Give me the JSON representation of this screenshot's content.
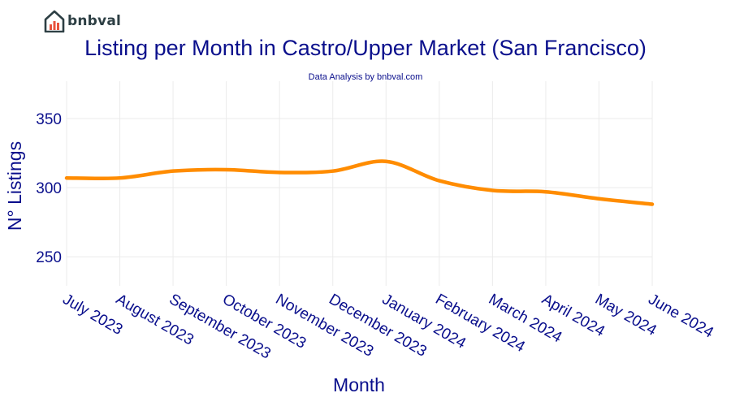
{
  "brand": {
    "name": "bnbval"
  },
  "colors": {
    "accent": "#ff8c00",
    "text": "#0a0f8c",
    "grid": "#ebebeb"
  },
  "chart_data": {
    "type": "line",
    "title": "Listing per Month in Castro/Upper Market (San Francisco)",
    "subtitle": "Data Analysis by bnbval.com",
    "xlabel": "Month",
    "ylabel": "N° Listings",
    "categories": [
      "July 2023",
      "August 2023",
      "September 2023",
      "October 2023",
      "November 2023",
      "December 2023",
      "January 2024",
      "February 2024",
      "March 2024",
      "April 2024",
      "May 2024",
      "June 2024"
    ],
    "series": [
      {
        "name": "Listings",
        "values": [
          307,
          307,
          312,
          313,
          311,
          312,
          319,
          305,
          298,
          297,
          292,
          288
        ]
      }
    ],
    "yticks": [
      250,
      300,
      350
    ],
    "ylim": [
      229,
      377
    ],
    "grid": true
  }
}
